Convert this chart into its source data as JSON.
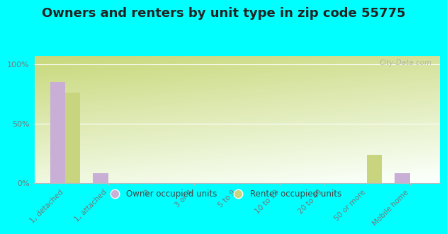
{
  "title": "Owners and renters by unit type in zip code 55775",
  "categories": [
    "1, detached",
    "1, attached",
    "2",
    "3 or 4",
    "5 to 9",
    "10 to 19",
    "20 to 49",
    "50 or more",
    "Mobile home"
  ],
  "owner_values": [
    85,
    8,
    0,
    0,
    0,
    0,
    0,
    0,
    8
  ],
  "renter_values": [
    76,
    0,
    0,
    0,
    0,
    0,
    0,
    24,
    0
  ],
  "owner_color": "#c9aed6",
  "renter_color": "#c8d47e",
  "background_color": "#00ffff",
  "grad_color_top": "#c8d87a",
  "grad_color_bottom": "#eef4d0",
  "ylabel_ticks": [
    "0%",
    "50%",
    "100%"
  ],
  "ytick_vals": [
    0,
    50,
    100
  ],
  "ylim": [
    0,
    107
  ],
  "bar_width": 0.35,
  "watermark": "City-Data.com",
  "legend_owner": "Owner occupied units",
  "legend_renter": "Renter occupied units",
  "title_fontsize": 13,
  "tick_fontsize": 7.5,
  "tick_color": "#777777"
}
